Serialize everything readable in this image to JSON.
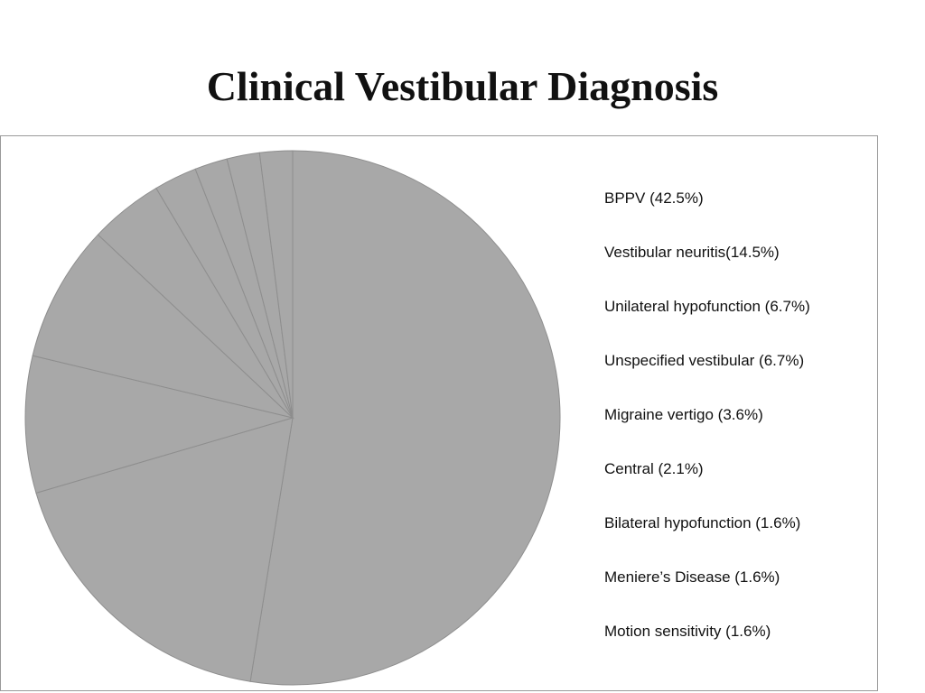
{
  "chart_data": {
    "type": "pie",
    "title": "Clinical Vestibular Diagnosis",
    "categories": [
      "BPPV",
      "Vestibular neuritis",
      "Unilateral hypofunction",
      "Unspecified vestibular",
      "Migraine vertigo",
      "Central",
      "Bilateral hypofunction",
      "Meniere’s Disease",
      "Motion sensitivity"
    ],
    "values": [
      42.5,
      14.5,
      6.7,
      6.7,
      3.6,
      2.1,
      1.6,
      1.6,
      1.6
    ],
    "legend_labels": [
      "BPPV (42.5%)",
      "Vestibular neuritis(14.5%)",
      "Unilateral hypofunction (6.7%)",
      "Unspecified vestibular (6.7%)",
      "Migraine vertigo (3.6%)",
      "Central (2.1%)",
      "Bilateral hypofunction (1.6%)",
      "Meniere’s Disease (1.6%)",
      "Motion sensitivity (1.6%)"
    ],
    "legend_position": "right",
    "colors": {
      "slice_fill": "#a8a8a8",
      "slice_stroke": "#8e8e8e",
      "frame": "#9a9a9a"
    }
  }
}
